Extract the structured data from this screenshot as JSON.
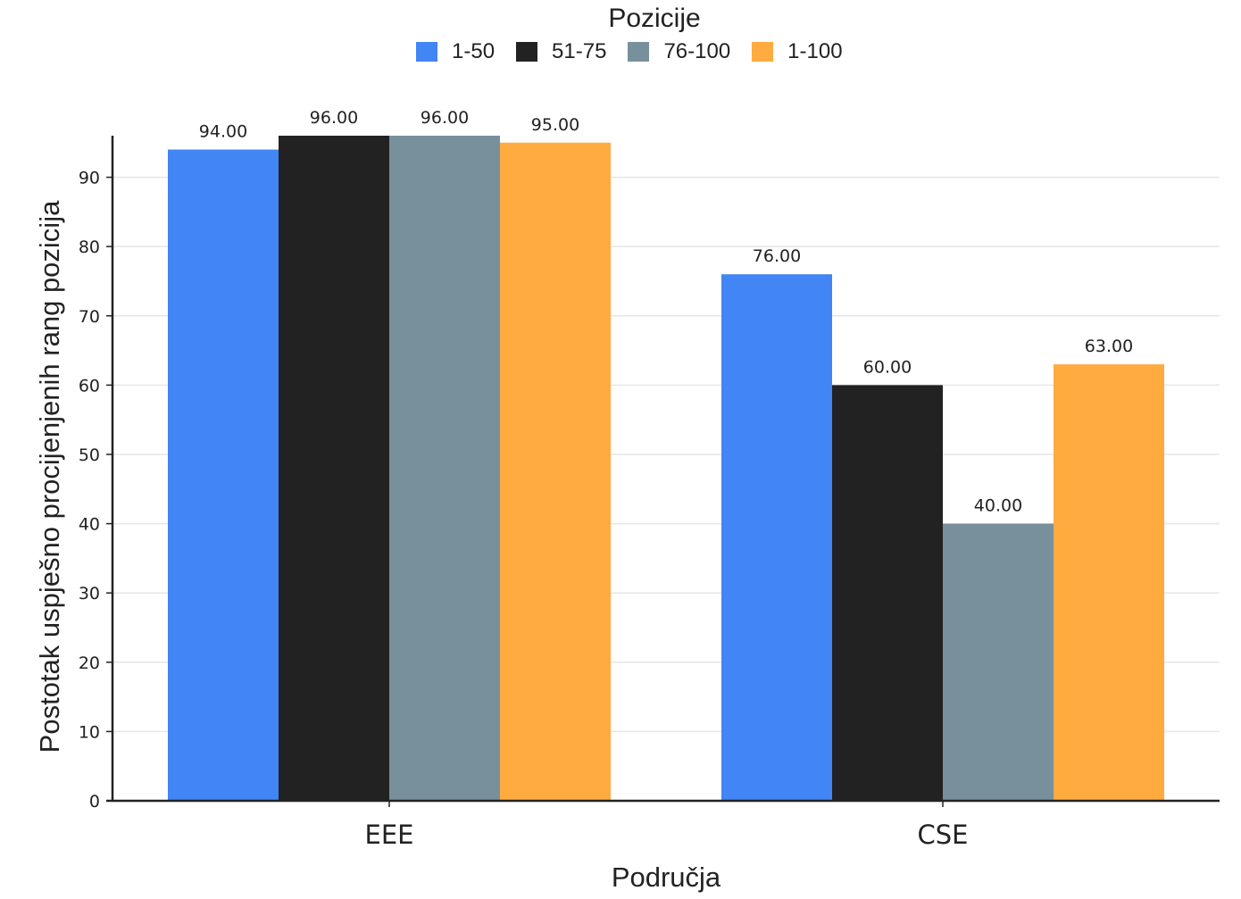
{
  "chart_data": {
    "type": "bar",
    "legend_title": "Pozicije",
    "legend_position": "top-center",
    "categories": [
      "EEE",
      "CSE"
    ],
    "series": [
      {
        "name": "1-50",
        "color": "#4285f4",
        "values": [
          94.0,
          76.0
        ],
        "labels": [
          "94.00",
          "76.00"
        ]
      },
      {
        "name": "51-75",
        "color": "#222222",
        "values": [
          96.0,
          60.0
        ],
        "labels": [
          "96.00",
          "60.00"
        ]
      },
      {
        "name": "76-100",
        "color": "#78909c",
        "values": [
          96.0,
          40.0
        ],
        "labels": [
          "96.00",
          "40.00"
        ]
      },
      {
        "name": "1-100",
        "color": "#ffab40",
        "values": [
          95.0,
          63.0
        ],
        "labels": [
          "95.00",
          "63.00"
        ]
      }
    ],
    "xlabel": "Područja",
    "ylabel": "Postotak uspješno procijenjenih rang pozicija",
    "ylim": [
      0,
      96
    ],
    "yticks": [
      0,
      10,
      20,
      30,
      40,
      50,
      60,
      70,
      80,
      90
    ],
    "grid": true
  }
}
